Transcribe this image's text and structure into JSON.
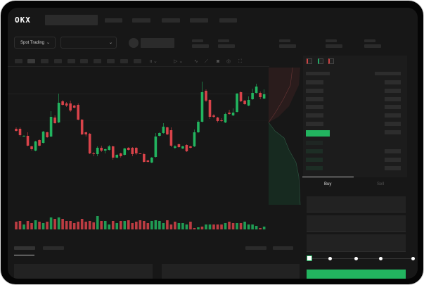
{
  "header": {
    "logo_text": "OKX",
    "nav_item_count": 5
  },
  "market_bar": {
    "mode_dropdown": "Spot Trading",
    "pair_dropdown": ""
  },
  "order_form": {
    "tabs": [
      {
        "label": "Buy",
        "active": true
      },
      {
        "label": "Sell",
        "active": false
      }
    ],
    "slider_percent": 0
  },
  "colors": {
    "up": "#22b45f",
    "down": "#d9434a",
    "background": "#171717",
    "placeholder": "#2b2b2b"
  },
  "chart_data": {
    "type": "candlestick",
    "candles_ohlc": [
      [
        68,
        70,
        64,
        65
      ],
      [
        68,
        70,
        57,
        59
      ],
      [
        57,
        59,
        57,
        58
      ],
      [
        58,
        63,
        43,
        44
      ],
      [
        43,
        44,
        37,
        39
      ],
      [
        37,
        51,
        36,
        50
      ],
      [
        52,
        53,
        43,
        44
      ],
      [
        48,
        65,
        47,
        64
      ],
      [
        63,
        64,
        55,
        56
      ],
      [
        57,
        93,
        56,
        85
      ],
      [
        84,
        87,
        75,
        76
      ],
      [
        77,
        118,
        76,
        105
      ],
      [
        107,
        109,
        101,
        102
      ],
      [
        104,
        106,
        99,
        101
      ],
      [
        104,
        108,
        92,
        94
      ],
      [
        101,
        102,
        97,
        98
      ],
      [
        102,
        104,
        80,
        81
      ],
      [
        81,
        82,
        59,
        60
      ],
      [
        63,
        64,
        57,
        60
      ],
      [
        61,
        62,
        32,
        33
      ],
      [
        33,
        35,
        29,
        32
      ],
      [
        32,
        43,
        29,
        41
      ],
      [
        41,
        44,
        35,
        37
      ],
      [
        37,
        40,
        33,
        39
      ],
      [
        38,
        45,
        37,
        43
      ],
      [
        43,
        44,
        24,
        27
      ],
      [
        27,
        32,
        26,
        31
      ],
      [
        33,
        34,
        27,
        29
      ],
      [
        31,
        41,
        30,
        40
      ],
      [
        41,
        42,
        37,
        38
      ],
      [
        41,
        42,
        29,
        32
      ],
      [
        41,
        42,
        31,
        33
      ],
      [
        33,
        33,
        32,
        32
      ],
      [
        32,
        34,
        20,
        21
      ],
      [
        23,
        24,
        20,
        21
      ],
      [
        20,
        28,
        19,
        27
      ],
      [
        28,
        62,
        27,
        57
      ],
      [
        58,
        63,
        57,
        62
      ],
      [
        62,
        76,
        61,
        71
      ],
      [
        70,
        71,
        59,
        60
      ],
      [
        66,
        70,
        42,
        44
      ],
      [
        41,
        45,
        39,
        43
      ],
      [
        46,
        47,
        41,
        42
      ],
      [
        40,
        44,
        39,
        43
      ],
      [
        45,
        46,
        35,
        36
      ],
      [
        43,
        44,
        40,
        41
      ],
      [
        43,
        67,
        42,
        63
      ],
      [
        63,
        80,
        62,
        78
      ],
      [
        78,
        135,
        77,
        120
      ],
      [
        122,
        124,
        106,
        108
      ],
      [
        109,
        110,
        82,
        85
      ],
      [
        87,
        89,
        83,
        85
      ],
      [
        84,
        85,
        77,
        79
      ],
      [
        80,
        83,
        78,
        79
      ],
      [
        77,
        91,
        76,
        89
      ],
      [
        91,
        95,
        88,
        89
      ],
      [
        87,
        97,
        86,
        91
      ],
      [
        92,
        119,
        91,
        118
      ],
      [
        120,
        121,
        106,
        107
      ],
      [
        108,
        109,
        102,
        103
      ],
      [
        101,
        114,
        100,
        109
      ],
      [
        110,
        125,
        109,
        119
      ],
      [
        119,
        132,
        118,
        128
      ],
      [
        119,
        121,
        110,
        113
      ],
      [
        111,
        124,
        110,
        117
      ]
    ],
    "volume": [
      11,
      12,
      7,
      12,
      9,
      13,
      11,
      9,
      11,
      17,
      15,
      17,
      15,
      12,
      12,
      9,
      11,
      15,
      11,
      12,
      10,
      19,
      12,
      12,
      7,
      12,
      9,
      12,
      12,
      13,
      9,
      11,
      13,
      12,
      9,
      12,
      13,
      12,
      9,
      13,
      7,
      11,
      9,
      9,
      7,
      11,
      2,
      3,
      4,
      7,
      7,
      7,
      7,
      7,
      9,
      11,
      9,
      9,
      9,
      11,
      7,
      7,
      5,
      2,
      4
    ],
    "volume_up": [
      false,
      false,
      true,
      false,
      false,
      true,
      false,
      true,
      false,
      true,
      false,
      true,
      false,
      false,
      false,
      false,
      false,
      false,
      false,
      false,
      false,
      true,
      false,
      true,
      true,
      false,
      true,
      false,
      true,
      false,
      false,
      false,
      false,
      false,
      false,
      true,
      true,
      true,
      true,
      false,
      false,
      false,
      true,
      true,
      true,
      false,
      false,
      true,
      false,
      true,
      true,
      false,
      false,
      false,
      true,
      false,
      false,
      true,
      false,
      true,
      true,
      true,
      true,
      false,
      true
    ]
  }
}
